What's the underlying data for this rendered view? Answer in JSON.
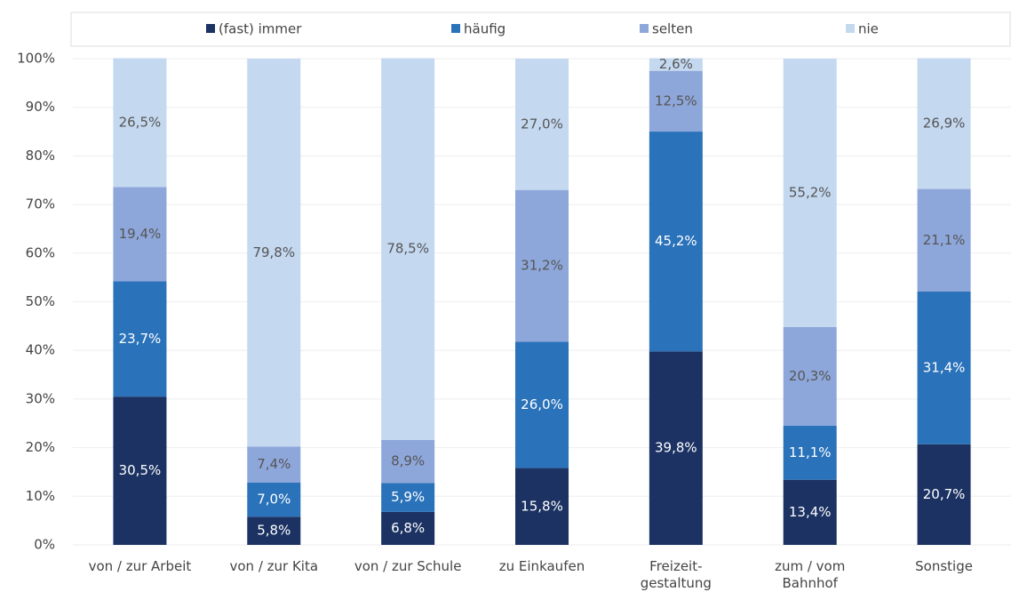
{
  "chart_data": {
    "type": "stacked_bar",
    "categories": [
      "von / zur Arbeit",
      "von / zur Kita",
      "von / zur Schule",
      "zu Einkaufen",
      "Freizeit-\ngestaltung",
      "zum / vom\nBahnhof",
      "Sonstige"
    ],
    "series": [
      {
        "name": "(fast) immer",
        "color": "#1b3263",
        "values": [
          30.5,
          5.8,
          6.8,
          15.8,
          39.8,
          13.4,
          20.7
        ],
        "value_labels": [
          "30,5%",
          "5,8%",
          "6,8%",
          "15,8%",
          "39,8%",
          "13,4%",
          "20,7%"
        ]
      },
      {
        "name": "häufig",
        "color": "#2a72ba",
        "values": [
          23.7,
          7.0,
          5.9,
          26.0,
          45.2,
          11.1,
          31.4
        ],
        "value_labels": [
          "23,7%",
          "7,0%",
          "5,9%",
          "26,0%",
          "45,2%",
          "11,1%",
          "31,4%"
        ]
      },
      {
        "name": "selten",
        "color": "#8ea7da",
        "values": [
          19.4,
          7.4,
          8.9,
          31.2,
          12.5,
          20.3,
          21.1
        ],
        "value_labels": [
          "19,4%",
          "7,4%",
          "8,9%",
          "31,2%",
          "12,5%",
          "20,3%",
          "21,1%"
        ]
      },
      {
        "name": "nie",
        "color": "#c4d8f0",
        "values": [
          26.5,
          79.8,
          78.5,
          27.0,
          2.6,
          55.2,
          26.9
        ],
        "value_labels": [
          "26,5%",
          "79,8%",
          "78,5%",
          "27,0%",
          "2,6%",
          "55,2%",
          "26,9%"
        ]
      }
    ],
    "ylim": [
      0,
      100
    ],
    "yticks": [
      {
        "value": 0,
        "label": "0%"
      },
      {
        "value": 10,
        "label": "10%"
      },
      {
        "value": 20,
        "label": "20%"
      },
      {
        "value": 30,
        "label": "30%"
      },
      {
        "value": 40,
        "label": "40%"
      },
      {
        "value": 50,
        "label": "50%"
      },
      {
        "value": 60,
        "label": "60%"
      },
      {
        "value": 70,
        "label": "70%"
      },
      {
        "value": 80,
        "label": "80%"
      },
      {
        "value": 90,
        "label": "90%"
      },
      {
        "value": 100,
        "label": "100%"
      }
    ],
    "grid": true,
    "legend": "top"
  }
}
